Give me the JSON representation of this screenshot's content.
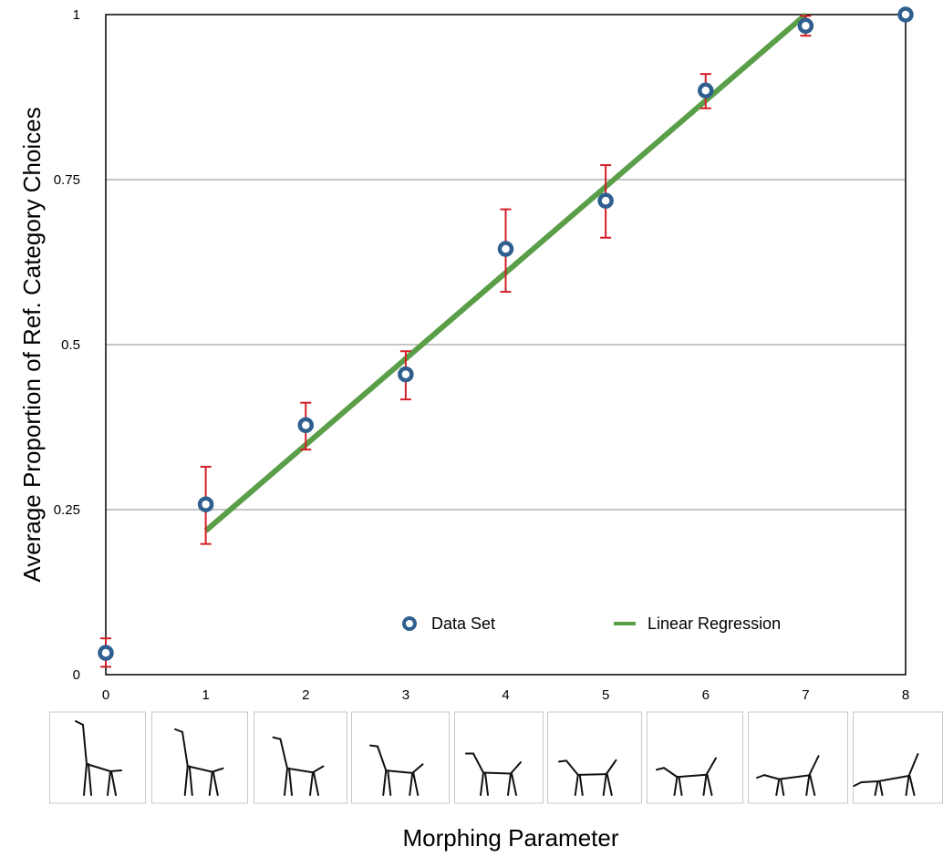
{
  "chart_data": {
    "type": "scatter",
    "title": "",
    "xlabel": "Morphing Parameter",
    "ylabel": "Average Proportion of Ref. Category Choices",
    "xlim": [
      0,
      8
    ],
    "ylim": [
      0,
      1
    ],
    "xticks": [
      "0",
      "1",
      "2",
      "3",
      "4",
      "5",
      "6",
      "7",
      "8"
    ],
    "yticks": [
      "0",
      "0.25",
      "0.5",
      "0.75",
      "1"
    ],
    "grid": "horizontal",
    "legend_position": "bottom-right",
    "series": [
      {
        "name": "Data Set",
        "kind": "scatter-with-error-bars",
        "color": "#2f5f8f",
        "x": [
          0,
          1,
          2,
          3,
          4,
          5,
          6,
          7,
          8
        ],
        "y": [
          0.033,
          0.258,
          0.378,
          0.455,
          0.645,
          0.718,
          0.885,
          0.983,
          1.0
        ],
        "error_low": [
          0.012,
          0.198,
          0.341,
          0.417,
          0.58,
          0.662,
          0.858,
          0.968,
          null
        ],
        "error_high": [
          0.055,
          0.315,
          0.412,
          0.49,
          0.705,
          0.772,
          0.91,
          0.998,
          null
        ],
        "error_color": "#d21f26"
      },
      {
        "name": "Linear Regression",
        "kind": "line",
        "color": "#5a9e48",
        "x": [
          1,
          7
        ],
        "y": [
          0.218,
          1.0
        ]
      }
    ],
    "thumbnails": {
      "count": 9,
      "description_icon": "stick-figure-morph-icon"
    }
  }
}
